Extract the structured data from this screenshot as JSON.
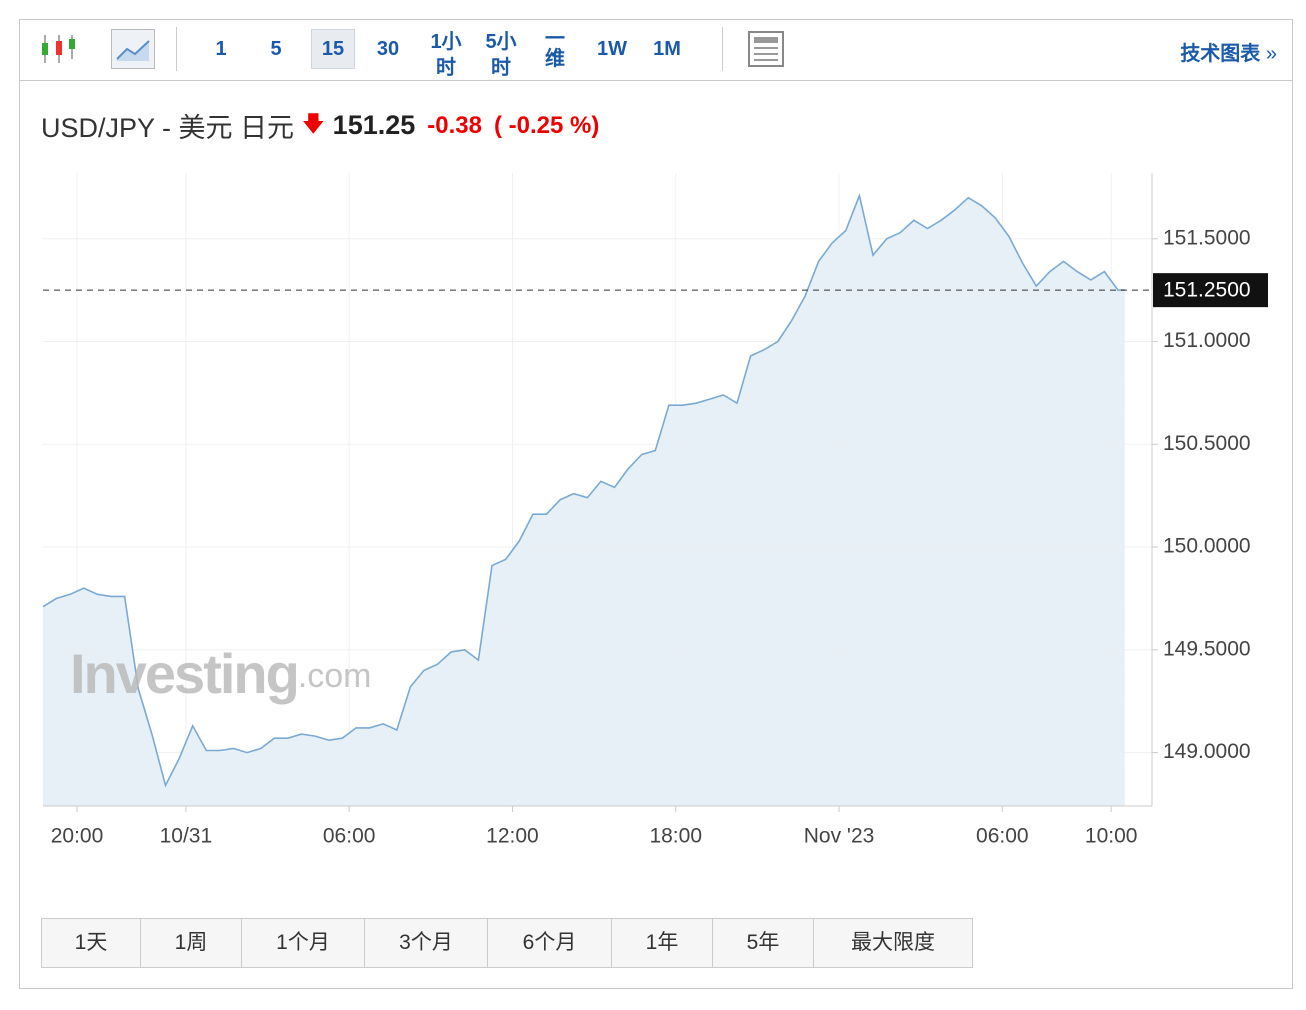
{
  "toolbar": {
    "intervals": [
      "1",
      "5",
      "15",
      "30",
      "1小时",
      "5小时",
      "一维",
      "1W",
      "1M"
    ],
    "selected": "15",
    "link": "技术图表"
  },
  "header": {
    "symbol": "USD/JPY - 美元 日元",
    "price": "151.25",
    "change": "-0.38",
    "change_pct": "( -0.25 %)"
  },
  "watermark": {
    "main": "Investing",
    "suffix": ".com"
  },
  "chart_data": {
    "type": "area",
    "x": [
      18.75,
      19.25,
      19.75,
      20.25,
      20.75,
      21.25,
      21.75,
      22.25,
      22.75,
      23.25,
      23.75,
      24.25,
      24.75,
      25.25,
      25.75,
      26.25,
      26.75,
      27.25,
      27.75,
      28.25,
      28.75,
      29.25,
      29.75,
      30.25,
      30.75,
      31.25,
      31.75,
      32.25,
      32.75,
      33.25,
      33.75,
      34.25,
      34.75,
      35.25,
      35.75,
      36.25,
      36.75,
      37.25,
      37.75,
      38.25,
      38.75,
      39.25,
      39.75,
      40.25,
      40.75,
      41.25,
      41.75,
      42.25,
      42.75,
      43.25,
      43.75,
      44.25,
      44.75,
      45.25,
      45.75,
      46.25,
      46.75,
      47.25,
      47.75,
      48.25,
      48.75,
      49.25,
      49.75,
      50.25,
      50.75,
      51.25,
      51.75,
      52.25,
      52.75,
      53.25,
      53.75,
      54.25,
      54.75,
      55.25,
      55.75,
      56.25,
      56.75,
      57.25,
      57.75,
      58.25,
      58.5
    ],
    "series": [
      {
        "name": "USD/JPY",
        "color": "#7aaad4",
        "values": [
          149.71,
          149.75,
          149.77,
          149.8,
          149.77,
          149.76,
          149.76,
          149.31,
          149.09,
          148.84,
          148.97,
          149.13,
          149.01,
          149.01,
          149.02,
          149.0,
          149.02,
          149.07,
          149.07,
          149.09,
          149.08,
          149.06,
          149.07,
          149.12,
          149.12,
          149.14,
          149.11,
          149.32,
          149.4,
          149.43,
          149.49,
          149.5,
          149.45,
          149.91,
          149.94,
          150.03,
          150.16,
          150.16,
          150.23,
          150.26,
          150.24,
          150.32,
          150.29,
          150.38,
          150.45,
          150.47,
          150.69,
          150.69,
          150.7,
          150.72,
          150.74,
          150.7,
          150.93,
          150.96,
          151.0,
          151.1,
          151.22,
          151.39,
          151.48,
          151.54,
          151.71,
          151.42,
          151.5,
          151.53,
          151.59,
          151.55,
          151.59,
          151.64,
          151.7,
          151.66,
          151.6,
          151.51,
          151.38,
          151.27,
          151.34,
          151.39,
          151.34,
          151.3,
          151.34,
          151.25,
          151.25
        ]
      }
    ],
    "xlim": [
      18.75,
      59.5
    ],
    "xticks": [
      {
        "value": 20,
        "label": "20:00"
      },
      {
        "value": 24,
        "label": "10/31"
      },
      {
        "value": 30,
        "label": "06:00"
      },
      {
        "value": 36,
        "label": "12:00"
      },
      {
        "value": 42,
        "label": "18:00"
      },
      {
        "value": 48,
        "label": "Nov '23"
      },
      {
        "value": 54,
        "label": "06:00"
      },
      {
        "value": 58,
        "label": "10:00"
      }
    ],
    "ylim": [
      148.74,
      151.82
    ],
    "yticks": [
      {
        "value": 149,
        "label": "149.0000"
      },
      {
        "value": 149.5,
        "label": "149.5000"
      },
      {
        "value": 150,
        "label": "150.0000"
      },
      {
        "value": 150.5,
        "label": "150.5000"
      },
      {
        "value": 151,
        "label": "151.0000"
      },
      {
        "value": 151.5,
        "label": "151.5000"
      }
    ],
    "last": {
      "value": 151.25,
      "label": "151.2500"
    },
    "grid": true,
    "fill": "#e6eef6"
  },
  "ranges": [
    "1天",
    "1周",
    "1个月",
    "3个月",
    "6个月",
    "1年",
    "5年",
    "最大限度"
  ]
}
